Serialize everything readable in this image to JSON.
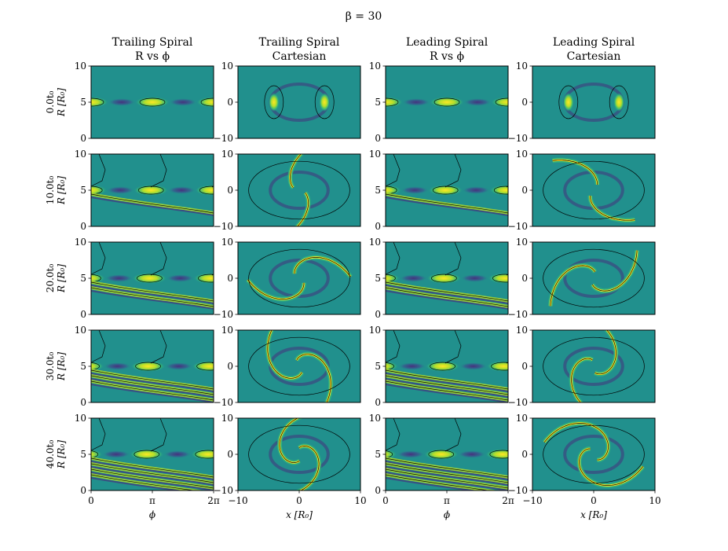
{
  "figure": {
    "suptitle": "β = 30",
    "columns": [
      {
        "line1": "Trailing Spiral",
        "line2": "R vs ϕ"
      },
      {
        "line1": "Trailing Spiral",
        "line2": "Cartesian"
      },
      {
        "line1": "Leading Spiral",
        "line2": "R vs ϕ"
      },
      {
        "line1": "Leading Spiral",
        "line2": "Cartesian"
      }
    ],
    "rows": [
      {
        "time_label": "0.0t₀",
        "ylabel": "R [R₀]"
      },
      {
        "time_label": "10.0t₀",
        "ylabel": "R [R₀]"
      },
      {
        "time_label": "20.0t₀",
        "ylabel": "R [R₀]"
      },
      {
        "time_label": "30.0t₀",
        "ylabel": "R [R₀]"
      },
      {
        "time_label": "40.0t₀",
        "ylabel": "R [R₀]"
      }
    ],
    "polar_yticks": [
      "0",
      "5",
      "10"
    ],
    "polar_xticks": [
      "0",
      "π",
      "2π"
    ],
    "polar_xlabel": "ϕ",
    "cart_yticks": [
      "−10",
      "0",
      "10"
    ],
    "cart_xticks": [
      "−10",
      "0",
      "10"
    ],
    "cart_xlabel": "x [R₀]",
    "colormap": {
      "background": "#21908d",
      "low": "#46327e",
      "mid": "#35b779",
      "high": "#fde725",
      "contour": "#000000"
    }
  },
  "chart_data": {
    "type": "heatmap",
    "title": "β = 30",
    "panels_layout": {
      "rows": 5,
      "cols": 4
    },
    "times": [
      0.0,
      10.0,
      20.0,
      30.0,
      40.0
    ],
    "time_unit": "t₀",
    "polar_axes": {
      "xlim": [
        0,
        6.2832
      ],
      "ylim": [
        0,
        10
      ],
      "xlabel": "ϕ",
      "ylabel": "R [R₀]"
    },
    "cartesian_axes": {
      "xlim": [
        -10,
        10
      ],
      "ylim": [
        -10,
        10
      ],
      "xlabel": "x [R₀]",
      "ylabel": ""
    },
    "series": [
      {
        "name": "Trailing Spiral R vs ϕ",
        "arms": 2,
        "ring_radius": 5,
        "winding": "trailing"
      },
      {
        "name": "Trailing Spiral Cartesian",
        "arms": 2,
        "ring_radius": 5,
        "winding": "trailing"
      },
      {
        "name": "Leading Spiral R vs ϕ",
        "arms": 2,
        "ring_radius": 5,
        "winding": "leading"
      },
      {
        "name": "Leading Spiral Cartesian",
        "arms": 2,
        "ring_radius": 5,
        "winding": "leading"
      }
    ]
  }
}
